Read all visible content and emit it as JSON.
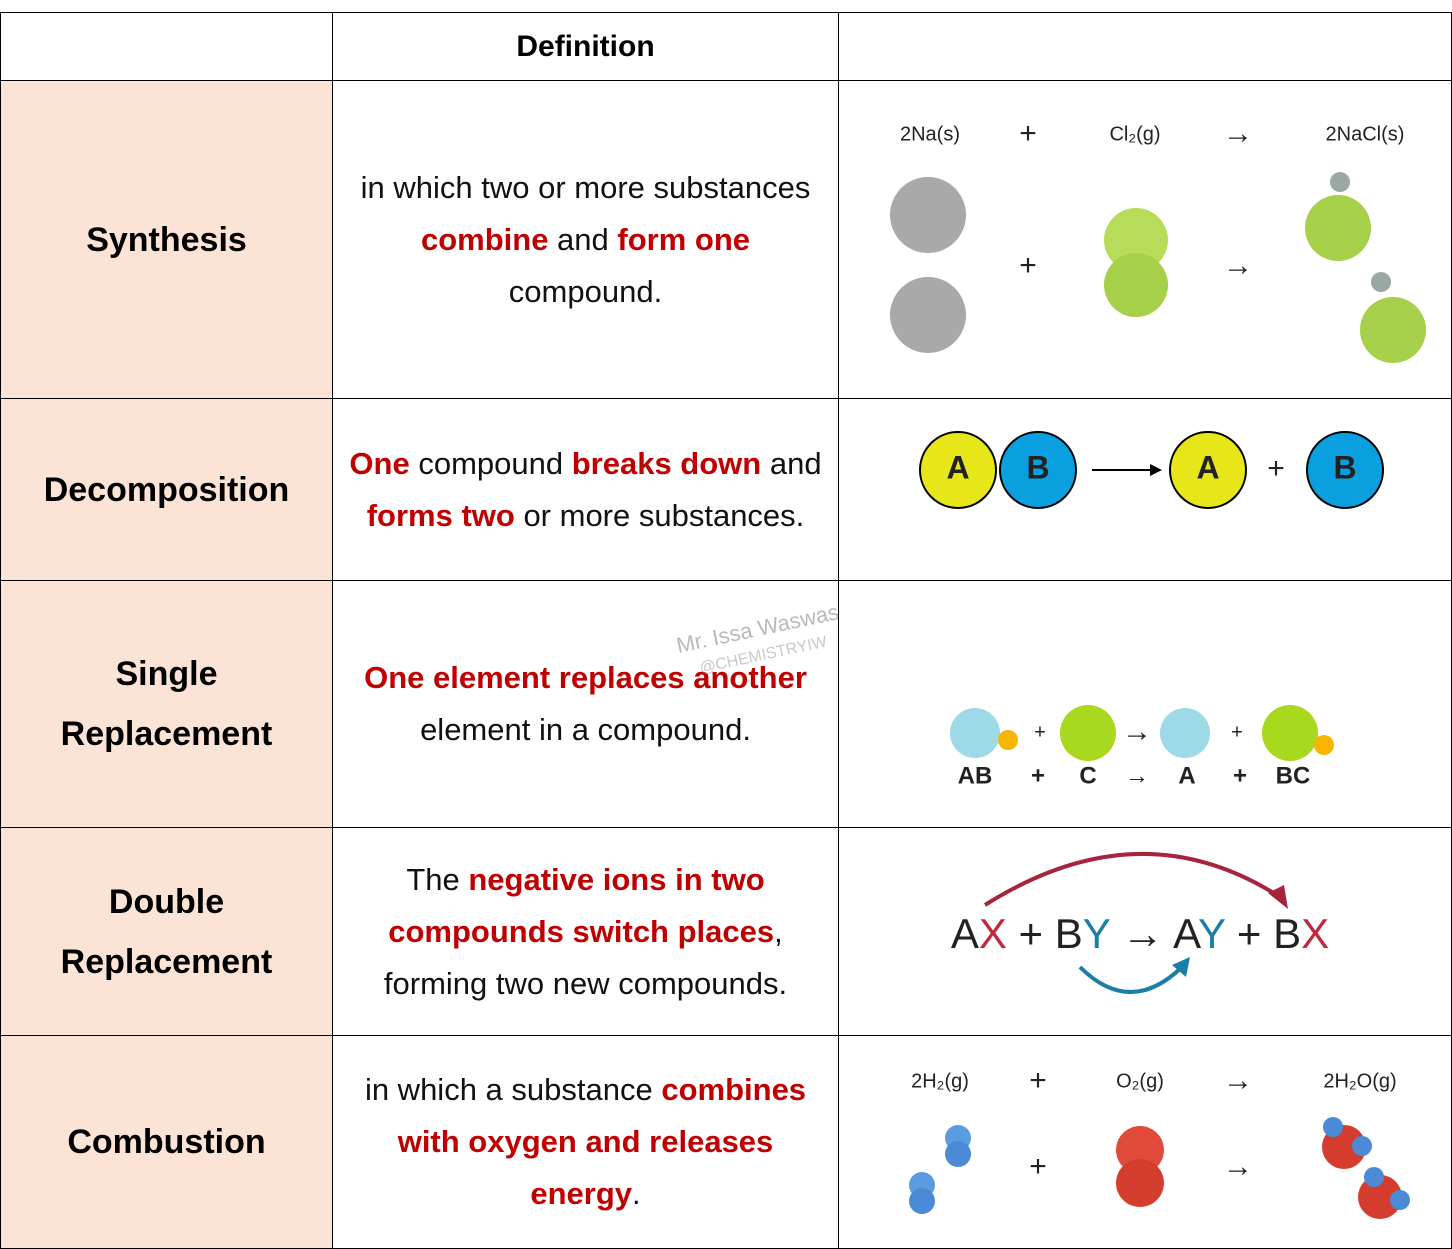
{
  "table": {
    "header": {
      "definition": "Definition"
    },
    "rows": [
      {
        "name": "Synthesis",
        "definition": [
          {
            "text": "in which two or more substances ",
            "highlight": false
          },
          {
            "text": "combine",
            "highlight": true
          },
          {
            "text": " and ",
            "highlight": false
          },
          {
            "text": "form one",
            "highlight": true
          },
          {
            "text": " compound.",
            "highlight": false
          }
        ],
        "diagram": {
          "labels": [
            "2Na(s)",
            "+",
            "Cl₂(g)",
            "→",
            "2NaCl(s)"
          ],
          "middle": [
            "+",
            "→"
          ]
        }
      },
      {
        "name": "Decomposition",
        "definition": [
          {
            "text": "One",
            "highlight": true
          },
          {
            "text": " compound ",
            "highlight": false
          },
          {
            "text": "breaks down",
            "highlight": true
          },
          {
            "text": " and ",
            "highlight": false
          },
          {
            "text": "forms two",
            "highlight": true
          },
          {
            "text": " or more substances.",
            "highlight": false
          }
        ],
        "diagram": {
          "labels": [
            "A",
            "B",
            "A",
            "+",
            "B"
          ]
        }
      },
      {
        "name": "Single Replacement",
        "definition": [
          {
            "text": "One element replaces another",
            "highlight": true
          },
          {
            "text": " element in a compound.",
            "highlight": false
          }
        ],
        "diagram": {
          "top": [
            "+",
            "→",
            "+"
          ],
          "bottom": [
            "AB",
            "+",
            "C",
            "→",
            "A",
            "+",
            "BC"
          ]
        }
      },
      {
        "name": "Double Replacement",
        "definition": [
          {
            "text": "The ",
            "highlight": false
          },
          {
            "text": "negative ions in two compounds switch places",
            "highlight": true
          },
          {
            "text": ", forming two new compounds.",
            "highlight": false
          }
        ],
        "diagram": {
          "equation": [
            "A",
            "X",
            " + ",
            "B",
            "Y",
            " → ",
            "A",
            "Y",
            " + ",
            "B",
            "X"
          ]
        }
      },
      {
        "name": "Combustion",
        "definition": [
          {
            "text": "in which a substance ",
            "highlight": false
          },
          {
            "text": "combines with oxygen and releases energy",
            "highlight": true
          },
          {
            "text": ".",
            "highlight": false
          }
        ],
        "diagram": {
          "labels": [
            "2H₂(g)",
            "+",
            "O₂(g)",
            "→",
            "2H₂O(g)"
          ],
          "middle": [
            "+",
            "→"
          ]
        }
      }
    ]
  },
  "watermark": {
    "name": "Mr. Issa Waswas",
    "handle": "@CHEMISTRYIW"
  }
}
